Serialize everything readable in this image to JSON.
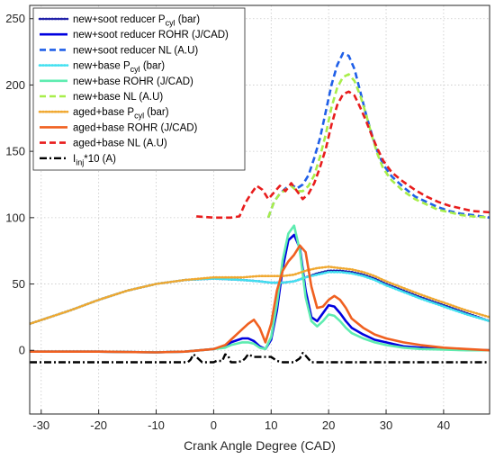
{
  "chart_data": {
    "type": "line",
    "title": "",
    "xlabel": "Crank Angle Degree (CAD)",
    "ylabel": "",
    "xlim": [
      -32,
      48
    ],
    "ylim": [
      -48,
      260
    ],
    "xticks": [
      -30,
      -20,
      -10,
      0,
      10,
      20,
      30,
      40
    ],
    "yticks": [
      0,
      50,
      100,
      150,
      200,
      250
    ],
    "grid": true,
    "legend_position": "top-left",
    "series": [
      {
        "name": "new+soot reducer P_cyl (bar)",
        "legend_main": "new+soot reducer P",
        "legend_sub": "cyl",
        "legend_tail": " (bar)",
        "color": "#1f1fa8",
        "dash": "dotted",
        "x": [
          -32,
          -25,
          -20,
          -15,
          -10,
          -5,
          0,
          5,
          8,
          10,
          12,
          14,
          16,
          18,
          20,
          22,
          24,
          26,
          28,
          30,
          33,
          36,
          40,
          44,
          48
        ],
        "y": [
          20,
          30,
          38,
          45,
          50,
          53,
          54,
          53,
          52,
          51,
          51,
          52,
          55,
          58,
          60,
          60,
          59,
          57,
          54,
          50,
          45,
          40,
          34,
          28,
          22
        ]
      },
      {
        "name": "new+soot reducer ROHR (J/CAD)",
        "legend_main": "new+soot reducer ROHR (J/CAD)",
        "color": "#0000e0",
        "dash": "solid",
        "x": [
          -32,
          -20,
          -10,
          -5,
          0,
          2,
          3,
          5,
          6,
          7,
          8,
          9,
          10,
          11,
          12,
          13,
          14,
          15,
          16,
          17,
          18,
          19,
          20,
          21,
          22,
          23,
          24,
          26,
          28,
          30,
          33,
          36,
          40,
          44,
          48
        ],
        "y": [
          -1,
          -1,
          -1.5,
          -1,
          1,
          3,
          6,
          9,
          9,
          7,
          3,
          1,
          8,
          30,
          62,
          83,
          87,
          77,
          45,
          25,
          22,
          28,
          34,
          33,
          28,
          22,
          17,
          12,
          8,
          6,
          3,
          2,
          1,
          0.5,
          0
        ]
      },
      {
        "name": "new+soot reducer NL (A.U)",
        "legend_main": "new+soot reducer NL (A.U)",
        "color": "#1f5fe8",
        "dash": "dashed",
        "x": [
          9.5,
          10.5,
          11.5,
          12.5,
          13.5,
          14.5,
          15.5,
          16.5,
          17.5,
          18.5,
          19.5,
          20.5,
          21.5,
          22.5,
          23.5,
          24.5,
          25.5,
          26.5,
          27.5,
          28.5,
          29.5,
          31,
          33,
          35,
          37,
          39,
          41,
          43,
          45,
          48
        ],
        "y": [
          100,
          112,
          118,
          122,
          125,
          122,
          125,
          132,
          145,
          160,
          180,
          200,
          215,
          224,
          222,
          212,
          195,
          178,
          163,
          150,
          140,
          131,
          123,
          116,
          112,
          108,
          105,
          103,
          102,
          100
        ]
      },
      {
        "name": "new+base P_cyl (bar)",
        "legend_main": "new+base P",
        "legend_sub": "cyl",
        "legend_tail": " (bar)",
        "color": "#40e0f0",
        "dash": "dotted",
        "x": [
          -32,
          -25,
          -20,
          -15,
          -10,
          -5,
          0,
          5,
          8,
          10,
          12,
          14,
          16,
          18,
          20,
          22,
          24,
          26,
          28,
          30,
          33,
          36,
          40,
          44,
          48
        ],
        "y": [
          20,
          30,
          38,
          45,
          50,
          53,
          54,
          53,
          52,
          51,
          51,
          52,
          55,
          57,
          59,
          59,
          58,
          56,
          53,
          49,
          44,
          39,
          33,
          27,
          22
        ]
      },
      {
        "name": "new+base ROHR (J/CAD)",
        "legend_main": "new+base ROHR (J/CAD)",
        "color": "#5eecb0",
        "dash": "solid",
        "x": [
          -32,
          -20,
          -10,
          -5,
          0,
          2,
          3,
          5,
          6,
          7,
          8,
          9,
          10,
          11,
          12,
          13,
          14,
          15,
          16,
          17,
          18,
          19,
          20,
          21,
          22,
          23,
          24,
          26,
          28,
          30,
          33,
          36,
          40,
          44,
          48
        ],
        "y": [
          -1,
          -1,
          -1.5,
          -1,
          1,
          2,
          4,
          6,
          6,
          5,
          2,
          1,
          10,
          35,
          68,
          88,
          94,
          75,
          40,
          22,
          18,
          22,
          27,
          26,
          22,
          17,
          13,
          9,
          6,
          4,
          2,
          1,
          0.5,
          0,
          0
        ]
      },
      {
        "name": "new+base NL (A.U)",
        "legend_main": "new+base NL (A.U)",
        "color": "#a8ee4a",
        "dash": "dashed",
        "x": [
          9.5,
          10.5,
          11.5,
          12.5,
          13.5,
          14.5,
          15.5,
          16.5,
          17.5,
          18.5,
          19.5,
          20.5,
          21.5,
          22.5,
          23.5,
          24.5,
          25.5,
          26.5,
          27.5,
          28.5,
          29.5,
          31,
          33,
          35,
          37,
          39,
          41,
          43,
          45,
          48
        ],
        "y": [
          100,
          112,
          118,
          121,
          124,
          120,
          120,
          124,
          132,
          146,
          163,
          183,
          198,
          206,
          208,
          203,
          192,
          178,
          162,
          148,
          137,
          128,
          120,
          114,
          110,
          106,
          104,
          102,
          101,
          100
        ]
      },
      {
        "name": "aged+base P_cyl (bar)",
        "legend_main": "aged+base P",
        "legend_sub": "cyl",
        "legend_tail": " (bar)",
        "color": "#f0a830",
        "dash": "dotted",
        "x": [
          -32,
          -25,
          -20,
          -15,
          -10,
          -5,
          0,
          5,
          8,
          10,
          12,
          14,
          16,
          18,
          20,
          22,
          24,
          26,
          28,
          30,
          33,
          36,
          40,
          44,
          48
        ],
        "y": [
          20,
          30,
          38,
          45,
          50,
          53,
          55,
          55,
          56,
          56,
          56,
          57,
          60,
          62,
          63,
          62,
          61,
          59,
          56,
          52,
          47,
          42,
          36,
          30,
          25
        ]
      },
      {
        "name": "aged+base ROHR (J/CAD)",
        "legend_main": "aged+base ROHR (J/CAD)",
        "color": "#f06020",
        "dash": "solid",
        "x": [
          -32,
          -20,
          -10,
          -5,
          0,
          2,
          3,
          5,
          6,
          7,
          8,
          9,
          10,
          11,
          12,
          13,
          14,
          15,
          16,
          17,
          18,
          19,
          20,
          21,
          22,
          23,
          24,
          26,
          28,
          30,
          33,
          36,
          40,
          44,
          48
        ],
        "y": [
          -1,
          -1,
          -1.5,
          -1,
          1,
          4,
          8,
          16,
          20,
          23,
          17,
          6,
          20,
          45,
          60,
          67,
          72,
          79,
          74,
          48,
          32,
          33,
          38,
          41,
          38,
          32,
          24,
          17,
          12,
          9,
          6,
          4,
          2,
          1,
          0
        ]
      },
      {
        "name": "aged+base NL (A.U)",
        "legend_main": "aged+base NL (A.U)",
        "color": "#e81c1c",
        "dash": "dashed",
        "x": [
          -3,
          0,
          1,
          3,
          4.5,
          5.5,
          6.5,
          7.5,
          8.5,
          9.5,
          10.5,
          11.5,
          12.5,
          13.5,
          14.5,
          15.5,
          16.5,
          17.5,
          18.5,
          19.5,
          20.5,
          21.5,
          22.5,
          23.5,
          24.5,
          25.5,
          26.5,
          27.5,
          28.5,
          29.5,
          31,
          33,
          35,
          37,
          39,
          41,
          43,
          45,
          48
        ],
        "y": [
          101,
          100,
          100,
          100,
          101,
          111,
          118,
          124,
          121,
          114,
          119,
          124,
          120,
          126,
          120,
          114,
          118,
          126,
          138,
          152,
          170,
          185,
          193,
          195,
          192,
          183,
          173,
          162,
          152,
          143,
          134,
          127,
          121,
          116,
          112,
          109,
          107,
          105,
          104
        ]
      },
      {
        "name": "I_inj*10 (A)",
        "legend_main": "I",
        "legend_sub": "inj",
        "legend_tail": "*10 (A)",
        "color": "#000000",
        "dash": "dashdot",
        "x": [
          -32,
          -10,
          -4.5,
          -4,
          -3.5,
          -3,
          -2,
          -1,
          0,
          0.5,
          1.5,
          2,
          2.5,
          3,
          4,
          5,
          5.5,
          6,
          7,
          8,
          9,
          10,
          11,
          12,
          14,
          15,
          15.5,
          16,
          17,
          18,
          20,
          25,
          30,
          35,
          40,
          48
        ],
        "y": [
          -9,
          -9,
          -9,
          -7,
          -3,
          -5,
          -9,
          -9,
          -9,
          -8,
          -8,
          -3,
          -4,
          -9,
          -9,
          -8,
          -6,
          -3,
          -5,
          -5,
          -5,
          -5,
          -8,
          -9,
          -9,
          -6,
          -2,
          -4,
          -9,
          -9,
          -9,
          -9,
          -9,
          -9,
          -9,
          -9
        ]
      }
    ]
  }
}
